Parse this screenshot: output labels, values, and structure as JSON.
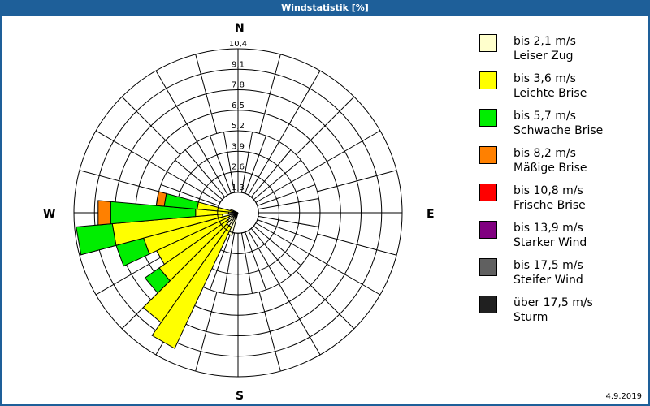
{
  "window": {
    "title": "Windstatistik [%]"
  },
  "compass": {
    "n": "N",
    "e": "E",
    "s": "S",
    "w": "W"
  },
  "scale_labels": [
    "1,3",
    "2,6",
    "3,9",
    "5,2",
    "6,5",
    "7,8",
    "9,1",
    "10,4"
  ],
  "legend": [
    {
      "range": "bis 2,1 m/s",
      "name": "Leiser Zug",
      "color": "#ffffcc"
    },
    {
      "range": "bis 3,6 m/s",
      "name": "Leichte Brise",
      "color": "#ffff00"
    },
    {
      "range": "bis 5,7 m/s",
      "name": "Schwache Brise",
      "color": "#00ee00"
    },
    {
      "range": "bis 8,2 m/s",
      "name": "Mäßige Brise",
      "color": "#ff8000"
    },
    {
      "range": "bis 10,8 m/s",
      "name": "Frische Brise",
      "color": "#ff0000"
    },
    {
      "range": "bis 13,9 m/s",
      "name": "Starker Wind",
      "color": "#800080"
    },
    {
      "range": "bis 17,5 m/s",
      "name": "Steifer Wind",
      "color": "#606060"
    },
    {
      "range": "über 17,5 m/s",
      "name": "Sturm",
      "color": "#202020"
    }
  ],
  "footer": {
    "date": "4.9.2019"
  },
  "chart_data": {
    "type": "polar-stacked-bar",
    "title": "Windstatistik [%]",
    "radial_axis": {
      "unit": "%",
      "ticks": [
        1.3,
        2.6,
        3.9,
        5.2,
        6.5,
        7.8,
        9.1,
        10.4
      ],
      "max": 10.4
    },
    "angular_axis": {
      "labels": [
        "N",
        "E",
        "S",
        "W"
      ],
      "sector_width_deg": 10
    },
    "series_names": [
      "bis 2,1 m/s",
      "bis 3,6 m/s",
      "bis 5,7 m/s",
      "bis 8,2 m/s",
      "bis 10,8 m/s",
      "bis 13,9 m/s",
      "bis 17,5 m/s",
      "über 17,5 m/s"
    ],
    "sectors": [
      {
        "dir_deg": 200,
        "cumulative": [
          1.5,
          1.5,
          1.5,
          1.5
        ]
      },
      {
        "dir_deg": 210,
        "cumulative": [
          1.0,
          9.5,
          9.5,
          9.5
        ]
      },
      {
        "dir_deg": 220,
        "cumulative": [
          1.0,
          8.5,
          8.5,
          8.5
        ]
      },
      {
        "dir_deg": 230,
        "cumulative": [
          0.8,
          6.1,
          7.2,
          7.2
        ]
      },
      {
        "dir_deg": 240,
        "cumulative": [
          0.8,
          5.7,
          5.7,
          5.7
        ]
      },
      {
        "dir_deg": 250,
        "cumulative": [
          0.6,
          6.2,
          8.0,
          8.0
        ]
      },
      {
        "dir_deg": 260,
        "cumulative": [
          1.0,
          8.0,
          10.3,
          10.3
        ]
      },
      {
        "dir_deg": 270,
        "cumulative": [
          0.6,
          2.7,
          8.1,
          8.9
        ]
      },
      {
        "dir_deg": 280,
        "cumulative": [
          0.4,
          2.6,
          4.7,
          5.2
        ]
      },
      {
        "dir_deg": 290,
        "cumulative": [
          0.3,
          0.5,
          0.5,
          0.5
        ]
      }
    ]
  }
}
